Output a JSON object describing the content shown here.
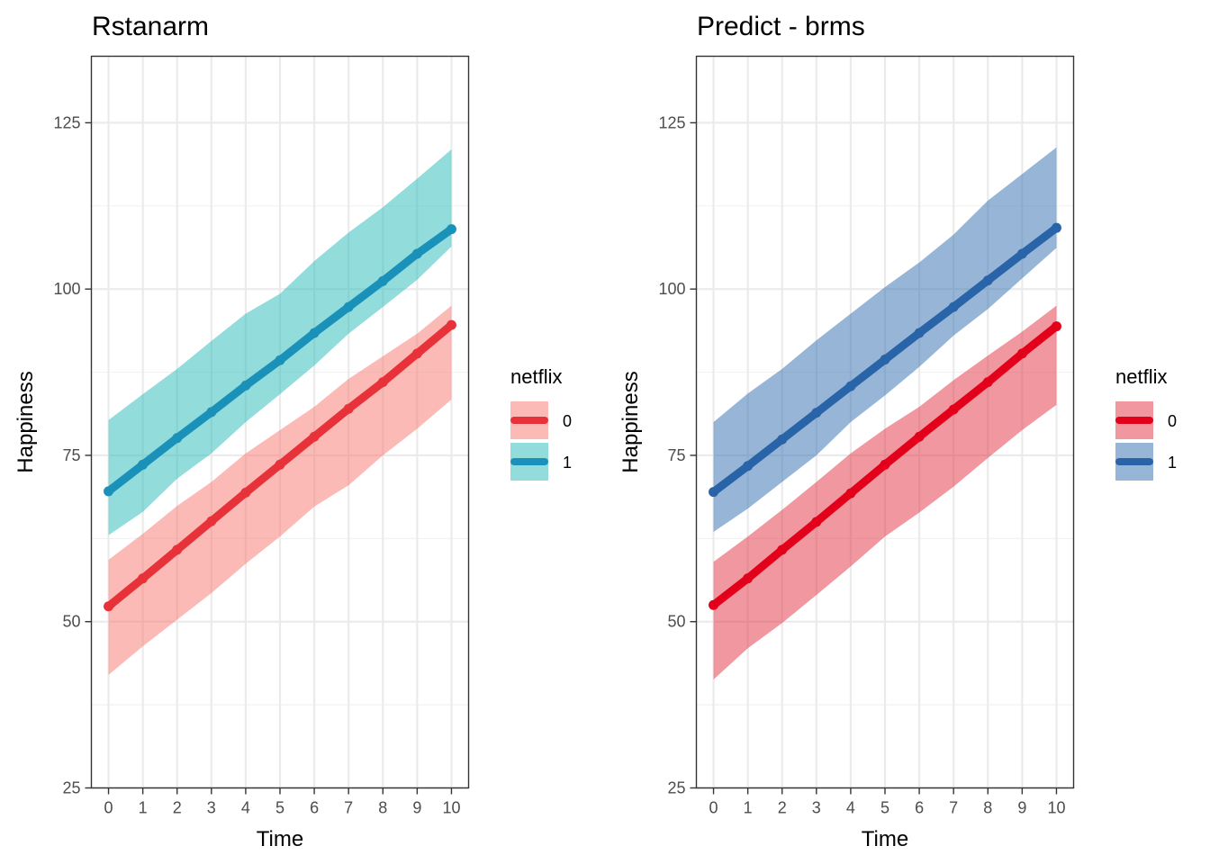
{
  "chart_data": [
    {
      "type": "line",
      "title": "Rstanarm",
      "xlabel": "Time",
      "ylabel": "Happiness",
      "x": [
        0,
        1,
        2,
        3,
        4,
        5,
        6,
        7,
        8,
        9,
        10
      ],
      "x_ticks": [
        "0",
        "1",
        "2",
        "3",
        "4",
        "5",
        "6",
        "7",
        "8",
        "9",
        "10"
      ],
      "xlim": [
        -0.5,
        10.5
      ],
      "ylim": [
        25,
        135
      ],
      "y_ticks": [
        "25",
        "50",
        "75",
        "100",
        "125"
      ],
      "grid": true,
      "legend": {
        "title": "netflix",
        "placement": "right"
      },
      "series": [
        {
          "name": "0",
          "line_color": "#e8323a",
          "band_color": "#f8766d",
          "values": [
            52.3,
            56.5,
            60.8,
            65.1,
            69.4,
            73.6,
            77.8,
            82.0,
            86.0,
            90.3,
            94.6
          ],
          "lower": [
            42.0,
            46.3,
            50.3,
            54.3,
            58.7,
            62.8,
            67.3,
            70.5,
            75.0,
            79.0,
            83.4
          ],
          "upper": [
            59.3,
            63.2,
            67.4,
            71.0,
            75.3,
            78.8,
            82.3,
            86.5,
            89.9,
            93.3,
            97.5
          ]
        },
        {
          "name": "1",
          "line_color": "#1a91b8",
          "band_color": "#25b9b9",
          "values": [
            69.6,
            73.6,
            77.6,
            81.5,
            85.5,
            89.3,
            93.4,
            97.3,
            101.2,
            105.3,
            109.0
          ],
          "lower": [
            63.0,
            66.5,
            71.5,
            75.3,
            80.0,
            84.2,
            88.5,
            93.3,
            97.3,
            101.4,
            106.4
          ],
          "upper": [
            80.3,
            84.2,
            88.0,
            92.2,
            96.3,
            99.3,
            104.2,
            108.5,
            112.3,
            116.6,
            121.0
          ]
        }
      ]
    },
    {
      "type": "line",
      "title": "Predict - brms",
      "xlabel": "Time",
      "ylabel": "Happiness",
      "x": [
        0,
        1,
        2,
        3,
        4,
        5,
        6,
        7,
        8,
        9,
        10
      ],
      "x_ticks": [
        "0",
        "1",
        "2",
        "3",
        "4",
        "5",
        "6",
        "7",
        "8",
        "9",
        "10"
      ],
      "xlim": [
        -0.5,
        10.5
      ],
      "ylim": [
        25,
        135
      ],
      "y_ticks": [
        "25",
        "50",
        "75",
        "100",
        "125"
      ],
      "grid": true,
      "legend": {
        "title": "netflix",
        "placement": "right"
      },
      "series": [
        {
          "name": "0",
          "line_color": "#e3001a",
          "band_color": "#e4303f",
          "values": [
            52.5,
            56.5,
            60.8,
            65.0,
            69.3,
            73.6,
            77.8,
            81.9,
            86.0,
            90.3,
            94.4
          ],
          "lower": [
            41.3,
            46.0,
            49.8,
            54.0,
            58.3,
            62.8,
            66.4,
            70.3,
            74.6,
            78.8,
            82.6
          ],
          "upper": [
            59.0,
            62.8,
            66.8,
            71.0,
            75.3,
            79.0,
            82.3,
            86.3,
            90.0,
            93.6,
            97.5
          ]
        },
        {
          "name": "1",
          "line_color": "#2a64a8",
          "band_color": "#306eb0",
          "values": [
            69.5,
            73.4,
            77.4,
            81.4,
            85.4,
            89.4,
            93.4,
            97.3,
            101.3,
            105.3,
            109.2
          ],
          "lower": [
            63.5,
            67.0,
            71.0,
            75.0,
            80.0,
            84.0,
            88.3,
            93.0,
            97.0,
            101.6,
            106.2
          ],
          "upper": [
            80.0,
            84.3,
            88.0,
            92.3,
            96.3,
            100.3,
            104.0,
            108.2,
            113.3,
            117.3,
            121.3
          ]
        }
      ]
    }
  ]
}
